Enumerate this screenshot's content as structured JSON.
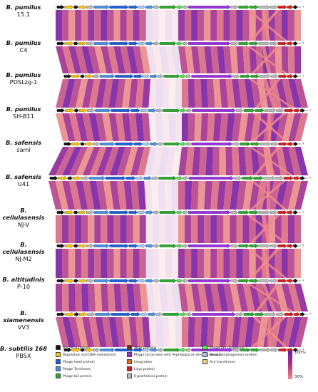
{
  "genomes": [
    {
      "species": "B. pumilus",
      "strain": "15.1"
    },
    {
      "species": "B. pumilus",
      "strain": "C4"
    },
    {
      "species": "B. pumilus",
      "strain": "PDSLzg-1"
    },
    {
      "species": "B. pumilus",
      "strain": "SH-B11"
    },
    {
      "species": "B. safensis",
      "strain": "sami"
    },
    {
      "species": "B. safensis",
      "strain": "U41"
    },
    {
      "species": "B. cellulasensis",
      "strain": "NJ-V"
    },
    {
      "species": "B. cellulasensis",
      "strain": "NJ-M2"
    },
    {
      "species": "B. altitudinis",
      "strain": "P-10"
    },
    {
      "species": "B. xiamenensis",
      "strain": "VV3"
    },
    {
      "species": "B. subtilis 168",
      "strain": "PBSX"
    }
  ],
  "legend": [
    {
      "label": "Bacterial protein",
      "color": "#111111"
    },
    {
      "label": "Regulation and DNA metabolism",
      "color": "#f4c20d"
    },
    {
      "label": "Phage head protein",
      "color": "#1f5fd6"
    },
    {
      "label": "Phage Terminase",
      "color": "#4a90e2"
    },
    {
      "label": "Phage tail protein",
      "color": "#2ca82c"
    },
    {
      "label": "Skdo proteins",
      "color": "#6b2a1a"
    },
    {
      "label": "Phage tail protein with Peptidoglycan binding domain",
      "color": "#9b30e0"
    },
    {
      "label": "Integration",
      "color": "#e06a1a"
    },
    {
      "label": "Lisys protein",
      "color": "#d81b1b"
    },
    {
      "label": "Hypothetical protein",
      "color": "#b8b8b8"
    },
    {
      "label": "Phage tail chaperone",
      "color": "#4fe34f"
    },
    {
      "label": "Head morphogenesis protein",
      "color": "#a8c8f0"
    },
    {
      "label": "Acil transferase",
      "color": "#f0d070"
    }
  ],
  "scale": {
    "max_label": "100%",
    "min_label": "30%"
  }
}
